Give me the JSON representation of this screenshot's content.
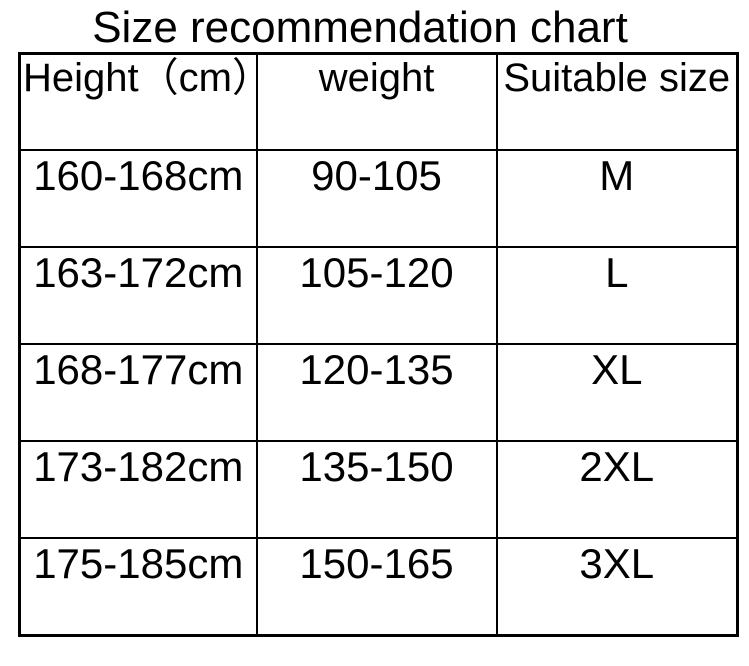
{
  "title": "Size recommendation chart",
  "table": {
    "columns": [
      "Height（cm）",
      "weight",
      "Suitable size"
    ],
    "rows": [
      [
        "160-168cm",
        "90-105",
        "M"
      ],
      [
        "163-172cm",
        "105-120",
        "L"
      ],
      [
        "168-177cm",
        "120-135",
        "XL"
      ],
      [
        "173-182cm",
        "135-150",
        "2XL"
      ],
      [
        "175-185cm",
        "150-165",
        "3XL"
      ]
    ]
  },
  "colors": {
    "background": "#ffffff",
    "text": "#000000",
    "border": "#000000"
  },
  "chart_data": {
    "type": "table",
    "title": "Size recommendation chart",
    "columns": [
      "Height（cm）",
      "weight",
      "Suitable size"
    ],
    "rows": [
      {
        "height_cm": "160-168cm",
        "weight": "90-105",
        "size": "M"
      },
      {
        "height_cm": "163-172cm",
        "weight": "105-120",
        "size": "L"
      },
      {
        "height_cm": "168-177cm",
        "weight": "120-135",
        "size": "XL"
      },
      {
        "height_cm": "173-182cm",
        "weight": "135-150",
        "size": "2XL"
      },
      {
        "height_cm": "175-185cm",
        "weight": "150-165",
        "size": "3XL"
      }
    ]
  }
}
